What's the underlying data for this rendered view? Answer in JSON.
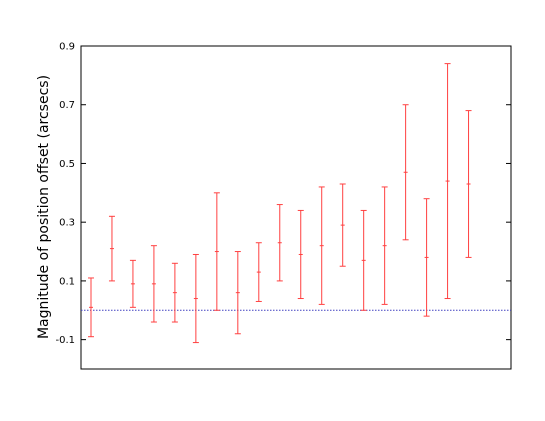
{
  "chart_data": {
    "type": "scatter",
    "title": "",
    "xlabel": "",
    "ylabel": "Magnitude of position offset (arcsecs)",
    "ylim": [
      -0.2,
      0.9
    ],
    "yticks": [
      -0.1,
      0.1,
      0.3,
      0.5,
      0.7,
      0.9
    ],
    "ytick_labels": [
      "-0.1",
      "0.1",
      "0.3",
      "0.5",
      "0.7",
      "0.9"
    ],
    "grid": false,
    "reference_line": {
      "y": 0,
      "color": "#4040c0",
      "style": "dotted"
    },
    "series": [
      {
        "color": "#ff4040",
        "x": [
          1,
          2,
          3,
          4,
          5,
          6,
          7,
          8,
          9,
          10,
          11,
          12,
          13,
          14,
          15,
          16,
          17,
          18,
          19,
          20
        ],
        "y": [
          0.01,
          0.21,
          0.09,
          0.09,
          0.06,
          0.04,
          0.2,
          0.06,
          0.13,
          0.23,
          0.19,
          0.22,
          0.29,
          0.17,
          0.22,
          0.47,
          0.18,
          0.44,
          0.43,
          null
        ],
        "y_low": [
          -0.09,
          0.1,
          0.01,
          -0.04,
          -0.04,
          -0.11,
          0.0,
          -0.08,
          0.03,
          0.1,
          0.04,
          0.02,
          0.15,
          0.0,
          0.02,
          0.24,
          -0.02,
          0.04,
          0.18,
          null
        ],
        "y_high": [
          0.11,
          0.32,
          0.17,
          0.22,
          0.16,
          0.19,
          0.4,
          0.2,
          0.23,
          0.36,
          0.34,
          0.42,
          0.43,
          0.34,
          0.42,
          0.7,
          0.38,
          0.84,
          0.68,
          null
        ]
      }
    ],
    "xlim": [
      0,
      20
    ]
  }
}
